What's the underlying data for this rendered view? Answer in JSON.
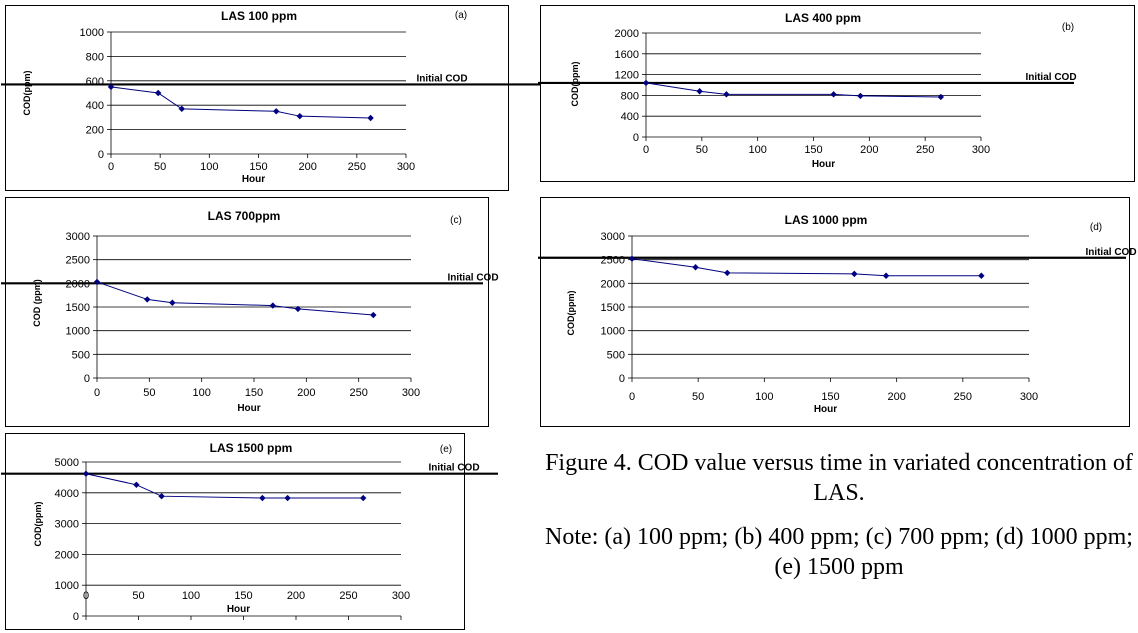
{
  "figure_caption": "Figure 4. COD value versus time in variated concentration of LAS.",
  "figure_note": "Note: (a) 100 ppm; (b) 400 ppm; (c) 700 ppm; (d) 1000 ppm; (e) 1500 ppm",
  "colors": {
    "series": "#000080",
    "reference_line": "#000000",
    "grid": "#000000"
  },
  "chart_data": [
    {
      "id": "a",
      "type": "line",
      "title": "LAS 100 ppm",
      "panel_label": "(a)",
      "xlabel": "Hour",
      "ylabel": "COD(ppm)",
      "xlim": [
        0,
        300
      ],
      "ylim": [
        0,
        1000
      ],
      "xticks": [
        0,
        50,
        100,
        150,
        200,
        250,
        300
      ],
      "yticks": [
        0,
        200,
        400,
        600,
        800,
        1000
      ],
      "grid": true,
      "x": [
        0,
        48,
        72,
        168,
        192,
        264
      ],
      "values": [
        550,
        500,
        370,
        350,
        310,
        295
      ],
      "reference": {
        "label": "Initial COD",
        "value": 570
      }
    },
    {
      "id": "b",
      "type": "line",
      "title": "LAS 400 ppm",
      "panel_label": "(b)",
      "xlabel": "Hour",
      "ylabel": "COD(ppm)",
      "xlim": [
        0,
        300
      ],
      "ylim": [
        0,
        2000
      ],
      "xticks": [
        0,
        50,
        100,
        150,
        200,
        250,
        300
      ],
      "yticks": [
        0,
        400,
        800,
        1200,
        1600,
        2000
      ],
      "grid": true,
      "x": [
        0,
        48,
        72,
        168,
        192,
        264
      ],
      "values": [
        1040,
        880,
        820,
        820,
        790,
        770
      ],
      "reference": {
        "label": "Initial COD",
        "value": 1040
      }
    },
    {
      "id": "c",
      "type": "line",
      "title": "LAS 700ppm",
      "panel_label": "(c)",
      "xlabel": "Hour",
      "ylabel": "COD (ppm)",
      "xlim": [
        0,
        300
      ],
      "ylim": [
        0,
        3000
      ],
      "xticks": [
        0,
        50,
        100,
        150,
        200,
        250,
        300
      ],
      "yticks": [
        0,
        500,
        1000,
        1500,
        2000,
        2500,
        3000
      ],
      "grid": true,
      "x": [
        0,
        48,
        72,
        168,
        192,
        264
      ],
      "values": [
        2030,
        1660,
        1590,
        1530,
        1460,
        1330
      ],
      "reference": {
        "label": "Initial COD",
        "value": 2000
      }
    },
    {
      "id": "d",
      "type": "line",
      "title": "LAS 1000 ppm",
      "panel_label": "(d)",
      "xlabel": "Hour",
      "ylabel": "COD(ppm)",
      "xlim": [
        0,
        300
      ],
      "ylim": [
        0,
        3000
      ],
      "xticks": [
        0,
        50,
        100,
        150,
        200,
        250,
        300
      ],
      "yticks": [
        0,
        500,
        1000,
        1500,
        2000,
        2500,
        3000
      ],
      "grid": true,
      "x": [
        0,
        48,
        72,
        168,
        192,
        264
      ],
      "values": [
        2520,
        2340,
        2220,
        2200,
        2160,
        2160
      ],
      "reference": {
        "label": "Initial COD",
        "value": 2540
      }
    },
    {
      "id": "e",
      "type": "line",
      "title": "LAS 1500 ppm",
      "panel_label": "(e)",
      "xlabel": "Hour",
      "ylabel": "COD(ppm)",
      "xlim": [
        0,
        300
      ],
      "ylim": [
        0,
        5000
      ],
      "xticks": [
        0,
        50,
        100,
        150,
        200,
        250,
        300
      ],
      "yticks": [
        0,
        1000,
        2000,
        3000,
        4000,
        5000
      ],
      "grid": true,
      "x": [
        0,
        48,
        72,
        168,
        192,
        264
      ],
      "values": [
        4620,
        4260,
        3890,
        3830,
        3830,
        3830
      ],
      "reference": {
        "label": "Initial COD",
        "value": 4620
      }
    }
  ]
}
